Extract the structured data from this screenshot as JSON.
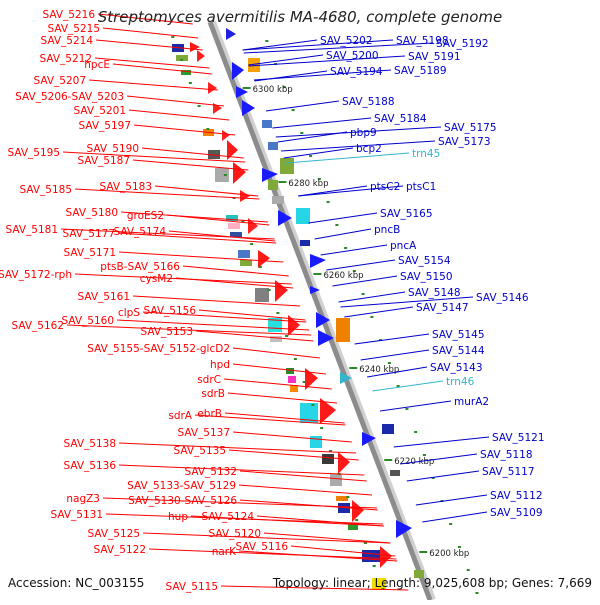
{
  "title": "Streptomyces avermitilis MA-4680, complete genome",
  "footer": {
    "accession": "Accession: NC_003155",
    "stats": "Topology: linear; Length: 9,025,608 bp; Genes: 7,669"
  },
  "colors": {
    "left_label": "#ff0000",
    "right_label": "#0000cc",
    "rna_label": "#33b5cc",
    "spine": "#8c8c8c",
    "ticks": "#2a8a2a"
  },
  "kbp_ticks": [
    "6300 kbp",
    "6280 kbp",
    "6260 kbp",
    "6240 kbp",
    "6220 kbp",
    "6200 kbp"
  ],
  "left_labels": [
    "SAV_5216",
    "SAV_5215",
    "SAV_5214",
    "SAV_5212",
    "hpcE",
    "SAV_5207",
    "SAV_5206-SAV_5203",
    "SAV_5201",
    "SAV_5197",
    "SAV_5195",
    "SAV_5190",
    "SAV_5187",
    "SAV_5185",
    "SAV_5183",
    "SAV_5180",
    "groES2",
    "SAV_5181",
    "SAV_5177",
    "SAV_5174",
    "SAV_5171",
    "SAV_5172-rph",
    "ptsB-SAV_5166",
    "cysM2",
    "SAV_5161",
    "SAV_5156",
    "clpS",
    "SAV_5160",
    "SAV_5162",
    "SAV_5153",
    "SAV_5155-SAV_5152-glcD2",
    "hpd",
    "sdrC",
    "sdrB",
    "sdrA",
    "ebrB",
    "SAV_5137",
    "SAV_5138",
    "SAV_5135",
    "SAV_5136",
    "SAV_5132",
    "SAV_5133-SAV_5129",
    "SAV_5130-SAV_5126",
    "nagZ3",
    "hup",
    "SAV_5131",
    "SAV_5124",
    "SAV_5125",
    "SAV_5120",
    "SAV_5122",
    "narK",
    "SAV_5116",
    "SAV_5115"
  ],
  "right_labels": [
    "SAV_5202",
    "SAV_5198",
    "SAV_5192",
    "SAV_5200",
    "SAV_5191",
    "SAV_5194",
    "SAV_5189",
    "SAV_5188",
    "SAV_5184",
    "pbp9",
    "SAV_5175",
    "bcp2",
    "SAV_5173",
    "trn45",
    "ptsC2",
    "ptsC1",
    "SAV_5165",
    "pncB",
    "pncA",
    "SAV_5154",
    "SAV_5150",
    "SAV_5148",
    "SAV_5146",
    "SAV_5147",
    "SAV_5145",
    "SAV_5144",
    "SAV_5143",
    "trn46",
    "murA2",
    "SAV_5121",
    "SAV_5118",
    "SAV_5117",
    "SAV_5112",
    "SAV_5109"
  ]
}
